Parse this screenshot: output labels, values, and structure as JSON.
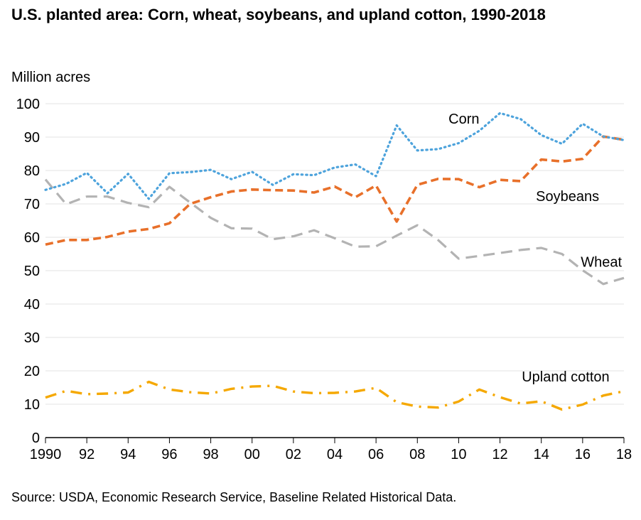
{
  "chart_data": {
    "type": "line",
    "title": "U.S. planted area: Corn, wheat, soybeans, and upland cotton, 1990-2018",
    "ylabel": "Million acres",
    "source": "Source: USDA, Economic Research Service, Baseline Related Historical Data.",
    "ylim": [
      0,
      100
    ],
    "yticks": [
      0,
      10,
      20,
      30,
      40,
      50,
      60,
      70,
      80,
      90,
      100
    ],
    "xlim": [
      1990,
      2018
    ],
    "xtick_values": [
      1990,
      1992,
      1994,
      1996,
      1998,
      2000,
      2002,
      2004,
      2006,
      2008,
      2010,
      2012,
      2014,
      2016,
      2018
    ],
    "xtick_labels": [
      "1990",
      "92",
      "94",
      "96",
      "98",
      "00",
      "02",
      "04",
      "06",
      "08",
      "10",
      "12",
      "14",
      "16",
      "18"
    ],
    "grid": true,
    "x": [
      1990,
      1991,
      1992,
      1993,
      1994,
      1995,
      1996,
      1997,
      1998,
      1999,
      2000,
      2001,
      2002,
      2003,
      2004,
      2005,
      2006,
      2007,
      2008,
      2009,
      2010,
      2011,
      2012,
      2013,
      2014,
      2015,
      2016,
      2017,
      2018
    ],
    "series": [
      {
        "name": "Corn",
        "color": "#4da3dc",
        "dash": "dotted",
        "values": [
          74.2,
          76.0,
          79.3,
          73.2,
          79.0,
          71.5,
          79.2,
          79.5,
          80.2,
          77.4,
          79.6,
          75.7,
          78.9,
          78.6,
          80.9,
          81.8,
          78.3,
          93.5,
          86.0,
          86.4,
          88.2,
          91.9,
          97.2,
          95.4,
          90.6,
          88.0,
          94.0,
          90.2,
          89.1
        ]
      },
      {
        "name": "Soybeans",
        "color": "#e8702a",
        "dash": "dashed",
        "values": [
          57.8,
          59.2,
          59.2,
          60.1,
          61.7,
          62.5,
          64.2,
          70.0,
          72.0,
          73.7,
          74.3,
          74.1,
          74.0,
          73.4,
          75.2,
          72.0,
          75.5,
          64.7,
          75.7,
          77.5,
          77.4,
          75.0,
          77.2,
          76.8,
          83.3,
          82.7,
          83.5,
          90.2,
          89.2
        ]
      },
      {
        "name": "Wheat",
        "color": "#b3b3b3",
        "dash": "longdash",
        "values": [
          77.3,
          69.9,
          72.2,
          72.2,
          70.3,
          69.0,
          75.1,
          70.4,
          65.8,
          62.7,
          62.6,
          59.4,
          60.3,
          62.1,
          59.7,
          57.2,
          57.3,
          60.5,
          63.6,
          59.2,
          53.6,
          54.4,
          55.3,
          56.2,
          56.8,
          55.0,
          50.1,
          46.0,
          47.8
        ]
      },
      {
        "name": "Upland cotton",
        "color": "#f5a800",
        "dash": "dashdot",
        "values": [
          12.0,
          14.0,
          13.0,
          13.2,
          13.5,
          16.7,
          14.4,
          13.6,
          13.2,
          14.6,
          15.3,
          15.5,
          13.8,
          13.3,
          13.4,
          13.8,
          14.9,
          10.6,
          9.3,
          9.0,
          10.8,
          14.4,
          12.1,
          10.2,
          10.9,
          8.4,
          9.9,
          12.6,
          13.9
        ]
      }
    ]
  }
}
